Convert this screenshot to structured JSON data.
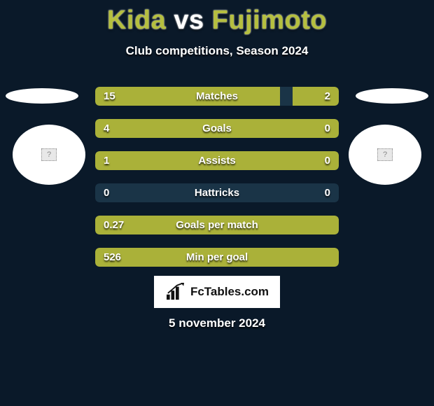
{
  "title_parts": {
    "p1": "Kida",
    "vs": "vs",
    "p2": "Fujimoto"
  },
  "subtitle": "Club competitions, Season 2024",
  "date": "5 november 2024",
  "brand": "FcTables.com",
  "colors": {
    "bar_fill": "#aab139",
    "bar_bg": "#1a3447",
    "bg": "#0a1929",
    "title": "#b5bf3f"
  },
  "bars": [
    {
      "label": "Matches",
      "left": "15",
      "right": "2",
      "left_pct": 76,
      "right_pct": 19
    },
    {
      "label": "Goals",
      "left": "4",
      "right": "0",
      "left_pct": 100,
      "right_pct": 0
    },
    {
      "label": "Assists",
      "left": "1",
      "right": "0",
      "left_pct": 100,
      "right_pct": 0
    },
    {
      "label": "Hattricks",
      "left": "0",
      "right": "0",
      "left_pct": 0,
      "right_pct": 0
    },
    {
      "label": "Goals per match",
      "left": "0.27",
      "right": "",
      "left_pct": 100,
      "right_pct": 0
    },
    {
      "label": "Min per goal",
      "left": "526",
      "right": "",
      "left_pct": 100,
      "right_pct": 0
    }
  ],
  "flag_placeholder": "?"
}
